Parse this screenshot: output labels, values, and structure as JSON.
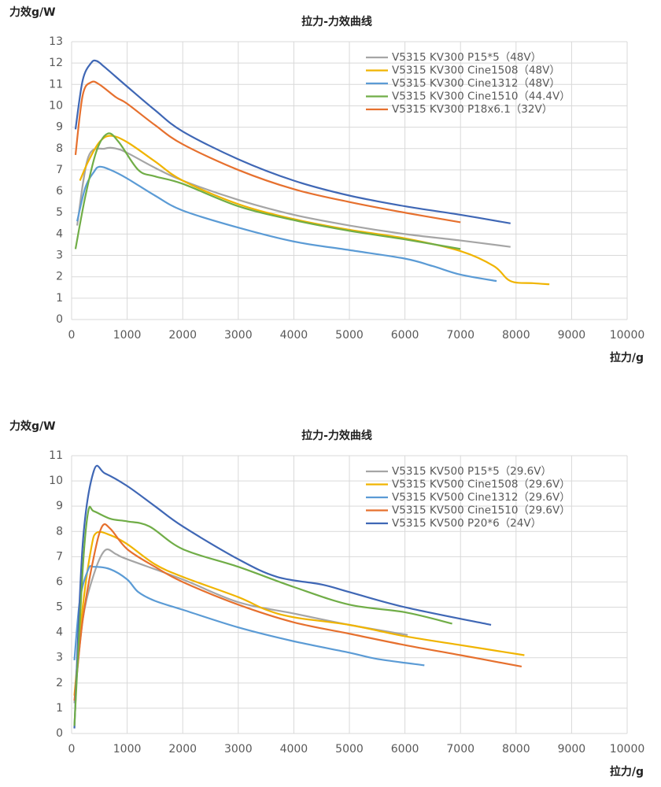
{
  "chart_data": [
    {
      "type": "line",
      "title": "拉力-力效曲线",
      "y_label": "力效g/W",
      "x_label": "拉力/g",
      "grid": true,
      "legend": "upper right",
      "xlim": [
        0,
        10000
      ],
      "xticks": [
        0,
        1000,
        2000,
        3000,
        4000,
        5000,
        6000,
        7000,
        8000,
        9000,
        10000
      ],
      "ylim": [
        0,
        13
      ],
      "yticks": [
        0,
        1,
        2,
        3,
        4,
        5,
        6,
        7,
        8,
        9,
        10,
        11,
        12,
        13
      ],
      "series": [
        {
          "name": "V5315 KV300 P15*5（48V）",
          "color": "#a5a5a5",
          "x": [
            100,
            300,
            600,
            800,
            1000,
            1500,
            2000,
            3000,
            4000,
            5000,
            6000,
            7000,
            7900
          ],
          "values": [
            4.4,
            7.6,
            8.0,
            8.0,
            7.8,
            7.1,
            6.5,
            5.6,
            4.9,
            4.4,
            4.0,
            3.7,
            3.4
          ]
        },
        {
          "name": "V5315 KV300 Cine1508（48V）",
          "color": "#f0b400",
          "x": [
            150,
            300,
            500,
            700,
            1000,
            1500,
            2000,
            3000,
            4000,
            5000,
            6000,
            7000,
            7600,
            7900,
            8300,
            8600
          ],
          "values": [
            6.5,
            7.4,
            8.3,
            8.6,
            8.3,
            7.4,
            6.5,
            5.4,
            4.7,
            4.2,
            3.8,
            3.2,
            2.5,
            1.8,
            1.7,
            1.65
          ]
        },
        {
          "name": "V5315 KV300 Cine1312（48V）",
          "color": "#5b9bd5",
          "x": [
            100,
            250,
            400,
            500,
            700,
            1000,
            1500,
            2000,
            3000,
            4000,
            5000,
            6000,
            6500,
            7000,
            7650
          ],
          "values": [
            4.6,
            6.2,
            6.9,
            7.15,
            7.0,
            6.6,
            5.8,
            5.1,
            4.3,
            3.65,
            3.25,
            2.85,
            2.5,
            2.1,
            1.8
          ]
        },
        {
          "name": "V5315 KV300 Cine1510（44.4V）",
          "color": "#70ad47",
          "x": [
            70,
            250,
            450,
            650,
            850,
            1200,
            1500,
            2000,
            3000,
            4000,
            5000,
            6000,
            7000
          ],
          "values": [
            3.3,
            5.8,
            7.9,
            8.7,
            8.3,
            7.0,
            6.7,
            6.35,
            5.3,
            4.65,
            4.15,
            3.75,
            3.3
          ]
        },
        {
          "name": "V5315 KV300 P18x6.1（32V）",
          "color": "#e6702e",
          "x": [
            70,
            200,
            350,
            500,
            800,
            1000,
            1500,
            2000,
            3000,
            4000,
            5000,
            6000,
            7000
          ],
          "values": [
            7.7,
            10.5,
            11.1,
            11.0,
            10.4,
            10.1,
            9.1,
            8.2,
            7.0,
            6.1,
            5.5,
            5.0,
            4.55
          ]
        },
        {
          "color": "#3f67b5",
          "x": [
            70,
            200,
            350,
            450,
            600,
            1000,
            1500,
            2000,
            3000,
            4000,
            5000,
            6000,
            7000,
            7900
          ],
          "values": [
            8.9,
            11.2,
            12.0,
            12.1,
            11.8,
            10.9,
            9.8,
            8.8,
            7.5,
            6.5,
            5.8,
            5.3,
            4.9,
            4.5
          ]
        }
      ]
    },
    {
      "type": "line",
      "title": "拉力-力效曲线",
      "y_label": "力效g/W",
      "x_label": "拉力/g",
      "grid": true,
      "legend": "upper right",
      "xlim": [
        0,
        10000
      ],
      "xticks": [
        0,
        1000,
        2000,
        3000,
        4000,
        5000,
        6000,
        7000,
        8000,
        9000,
        10000
      ],
      "ylim": [
        0,
        11
      ],
      "yticks": [
        0,
        1,
        2,
        3,
        4,
        5,
        6,
        7,
        8,
        9,
        10,
        11
      ],
      "series": [
        {
          "name": "V5315 KV500 P15*5（29.6V）",
          "color": "#a5a5a5",
          "x": [
            50,
            200,
            400,
            600,
            800,
            1000,
            2000,
            3000,
            4000,
            5000,
            6050
          ],
          "values": [
            1.2,
            4.5,
            6.3,
            7.25,
            7.1,
            6.9,
            6.1,
            5.2,
            4.75,
            4.3,
            3.9
          ]
        },
        {
          "name": "V5315 KV500 Cine1508（29.6V）",
          "color": "#f0b400",
          "x": [
            50,
            200,
            350,
            450,
            700,
            1000,
            1500,
            2000,
            3000,
            3500,
            4000,
            5000,
            6000,
            7000,
            8150
          ],
          "values": [
            1.5,
            5.0,
            7.3,
            7.95,
            7.85,
            7.5,
            6.7,
            6.2,
            5.4,
            4.9,
            4.6,
            4.3,
            3.85,
            3.5,
            3.1
          ]
        },
        {
          "name": "V5315 KV500 Cine1312（29.6V）",
          "color": "#5b9bd5",
          "x": [
            50,
            150,
            300,
            400,
            700,
            1000,
            1200,
            1500,
            2000,
            3000,
            4000,
            5000,
            5500,
            6350
          ],
          "values": [
            2.9,
            5.3,
            6.5,
            6.6,
            6.5,
            6.1,
            5.6,
            5.25,
            4.9,
            4.2,
            3.65,
            3.2,
            2.95,
            2.7
          ]
        },
        {
          "name": "V5315 KV500 Cine1510（29.6V）",
          "color": "#e6702e",
          "x": [
            50,
            200,
            400,
            550,
            700,
            1000,
            1500,
            2000,
            3000,
            4000,
            5000,
            6000,
            7000,
            8100
          ],
          "values": [
            1.3,
            4.5,
            7.0,
            8.2,
            8.1,
            7.3,
            6.6,
            6.0,
            5.1,
            4.4,
            3.95,
            3.5,
            3.1,
            2.65
          ]
        },
        {
          "name": "V5315 KV500 P20*6（24V）",
          "color": "#3f67b5",
          "x": [
            50,
            200,
            400,
            600,
            1000,
            1500,
            2000,
            3000,
            3700,
            4500,
            5000,
            6000,
            7550
          ],
          "values": [
            0.2,
            7.5,
            10.4,
            10.3,
            9.8,
            9.0,
            8.2,
            6.9,
            6.2,
            5.9,
            5.6,
            5.0,
            4.3
          ]
        },
        {
          "color": "#70ad47",
          "x": [
            50,
            200,
            300,
            400,
            700,
            1000,
            1400,
            2000,
            3000,
            4000,
            5000,
            6000,
            6850
          ],
          "values": [
            0.3,
            6.5,
            8.8,
            8.8,
            8.5,
            8.4,
            8.2,
            7.3,
            6.6,
            5.8,
            5.1,
            4.8,
            4.35
          ]
        }
      ]
    }
  ]
}
